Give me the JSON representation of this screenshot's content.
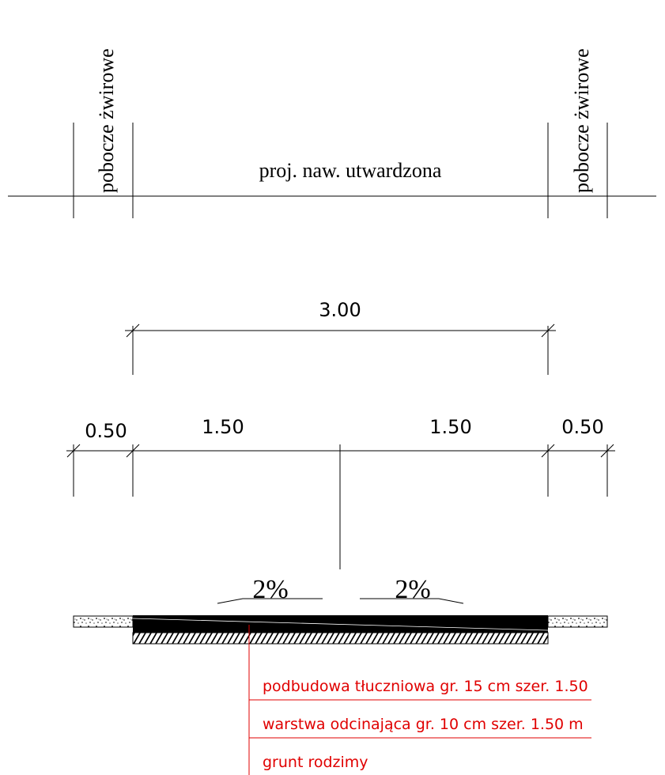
{
  "labels": {
    "shoulder_left": "pobocze żwirowe",
    "shoulder_right": "pobocze żwirowe",
    "carriageway": "proj. naw. utwardzona"
  },
  "dimensions": {
    "total": "3.00",
    "left_shoulder": "0.50",
    "left_half": "1.50",
    "right_half": "1.50",
    "right_shoulder": "0.50"
  },
  "slopes": {
    "left": "2%",
    "right": "2%"
  },
  "layers": {
    "base": "podbudowa tłuczniowa  gr. 15 cm szer. 1.50",
    "separating": "warstwa odcinająca gr. 10 cm szer. 1.50 m",
    "subgrade": "grunt rodzimy"
  },
  "colors": {
    "line": "#000000",
    "annotation": "#e00000",
    "asphalt": "#000000"
  }
}
